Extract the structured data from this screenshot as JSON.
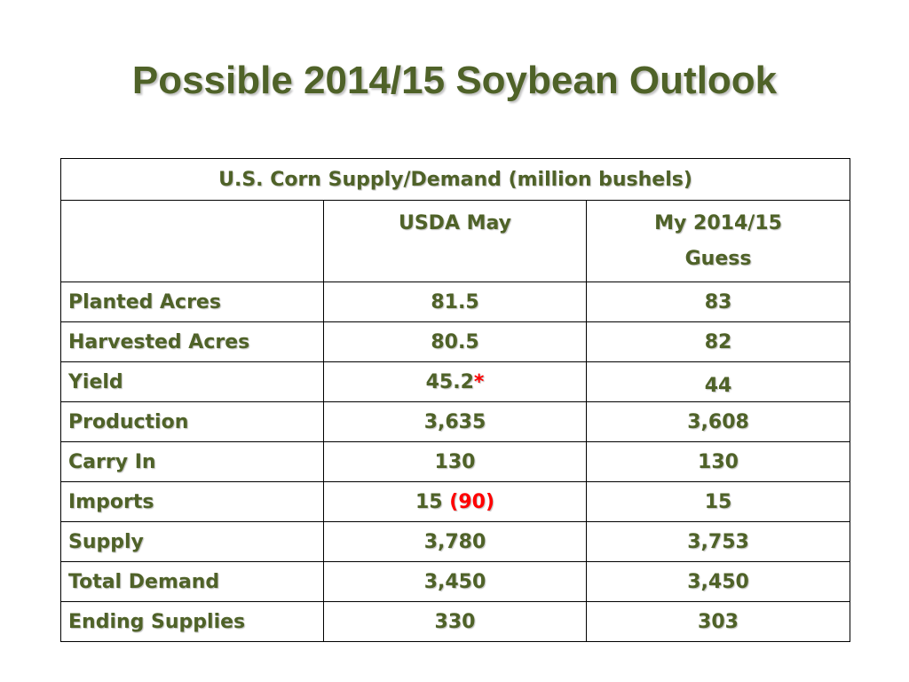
{
  "slide": {
    "title": "Possible 2014/15 Soybean Outlook"
  },
  "table": {
    "caption": "U.S. Corn Supply/Demand (million bushels)",
    "headers": [
      "",
      "USDA May",
      "My 2014/15 Guess"
    ],
    "rows": [
      {
        "label": "Planted Acres",
        "usda": "81.5",
        "usda_note": "",
        "guess": "83"
      },
      {
        "label": "Harvested Acres",
        "usda": "80.5",
        "usda_note": "",
        "guess": "82"
      },
      {
        "label": "Yield",
        "usda": "45.2",
        "usda_note": "*",
        "guess": "44"
      },
      {
        "label": "Production",
        "usda": "3,635",
        "usda_note": "",
        "guess": "3,608"
      },
      {
        "label": "Carry In",
        "usda": "130",
        "usda_note": "",
        "guess": "130"
      },
      {
        "label": "Imports",
        "usda": "15",
        "usda_note": "(90)",
        "guess": "15"
      },
      {
        "label": "Supply",
        "usda": "3,780",
        "usda_note": "",
        "guess": "3,753"
      },
      {
        "label": "Total Demand",
        "usda": "3,450",
        "usda_note": "",
        "guess": "3,450"
      },
      {
        "label": "Ending Supplies",
        "usda": "330",
        "usda_note": "",
        "guess": "303"
      }
    ]
  },
  "colors": {
    "text_green": "#4f6228",
    "highlight_red": "#ff0000",
    "border": "#000000",
    "background": "#ffffff"
  }
}
